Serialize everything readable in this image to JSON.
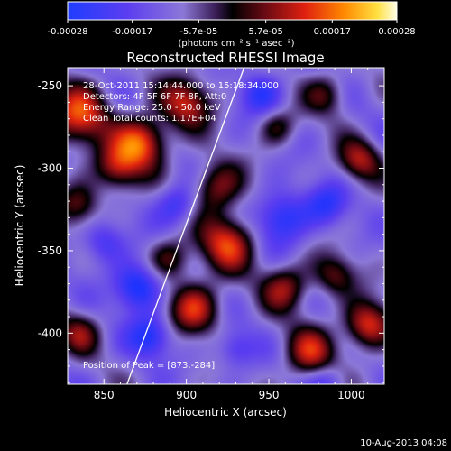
{
  "colorbar": {
    "tick_labels": [
      "-0.00028",
      "-0.00017",
      "-5.7e-05",
      "5.7e-05",
      "0.00017",
      "0.00028"
    ],
    "tick_values": [
      -0.00028,
      -0.00017,
      -5.7e-05,
      5.7e-05,
      0.00017,
      0.00028
    ],
    "range": [
      -0.00028,
      0.00028
    ],
    "unit_label": "(photons cm⁻² s⁻¹ asec⁻²)"
  },
  "chart_data": {
    "type": "heatmap",
    "title": "Reconstructed RHESSI Image",
    "xlabel": "Heliocentric X (arcsec)",
    "ylabel": "Heliocentric Y (arcsec)",
    "xlim": [
      828,
      1020
    ],
    "ylim": [
      -431,
      -239
    ],
    "x_ticks": [
      850,
      900,
      950,
      1000
    ],
    "y_ticks": [
      -250,
      -300,
      -350,
      -400
    ],
    "annotations": [
      "28-Oct-2011 15:14:44.000 to 15:18:34.000",
      "Detectors: 4F 5F 6F 7F 8F, Att:0",
      "Energy Range: 25.0 - 50.0 keV",
      "Clean    Total counts: 1.17E+04"
    ],
    "peak_label": "Position of Peak = [873,-284]",
    "peak": [
      873,
      -284
    ],
    "limb_line": {
      "points": [
        [
          864,
          -431
        ],
        [
          935,
          -239
        ]
      ]
    },
    "sources": [
      {
        "x": 835,
        "y": -268,
        "amp": 1.0,
        "s": 13
      },
      {
        "x": 873,
        "y": -284,
        "amp": 1.1,
        "s": 11
      },
      {
        "x": 900,
        "y": -260,
        "amp": 0.85,
        "s": 11
      },
      {
        "x": 858,
        "y": -300,
        "amp": 0.8,
        "s": 10
      },
      {
        "x": 835,
        "y": -322,
        "amp": 0.6,
        "s": 9
      },
      {
        "x": 918,
        "y": -312,
        "amp": 0.75,
        "s": 11
      },
      {
        "x": 925,
        "y": -345,
        "amp": 0.95,
        "s": 12
      },
      {
        "x": 905,
        "y": -385,
        "amp": 0.9,
        "s": 11
      },
      {
        "x": 890,
        "y": -355,
        "amp": 0.6,
        "s": 9
      },
      {
        "x": 960,
        "y": -372,
        "amp": 0.75,
        "s": 10
      },
      {
        "x": 975,
        "y": -412,
        "amp": 0.8,
        "s": 11
      },
      {
        "x": 1010,
        "y": -395,
        "amp": 1.0,
        "s": 10
      },
      {
        "x": 1005,
        "y": -295,
        "amp": 0.75,
        "s": 9
      },
      {
        "x": 990,
        "y": -365,
        "amp": 0.6,
        "s": 9
      },
      {
        "x": 835,
        "y": -400,
        "amp": 0.6,
        "s": 9
      },
      {
        "x": 985,
        "y": -255,
        "amp": 0.55,
        "s": 9
      },
      {
        "x": 955,
        "y": -275,
        "amp": 0.5,
        "s": 8
      },
      {
        "x": 870,
        "y": -372,
        "amp": -0.85,
        "s": 10
      },
      {
        "x": 878,
        "y": -402,
        "amp": -0.7,
        "s": 9
      },
      {
        "x": 895,
        "y": -322,
        "amp": -0.6,
        "s": 9
      },
      {
        "x": 958,
        "y": -330,
        "amp": -0.75,
        "s": 11
      },
      {
        "x": 985,
        "y": -322,
        "amp": -0.55,
        "s": 9
      },
      {
        "x": 945,
        "y": -255,
        "amp": -0.55,
        "s": 9
      },
      {
        "x": 985,
        "y": -430,
        "amp": -0.45,
        "s": 8
      },
      {
        "x": 930,
        "y": -410,
        "amp": -0.45,
        "s": 8
      },
      {
        "x": 850,
        "y": -345,
        "amp": -0.5,
        "s": 9
      }
    ]
  },
  "footer": {
    "timestamp": "10-Aug-2013 04:08"
  }
}
